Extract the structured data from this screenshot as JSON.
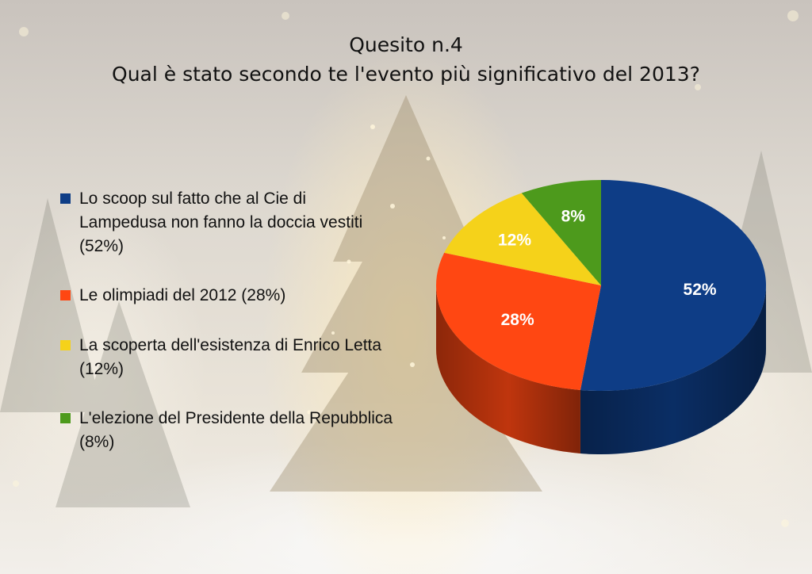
{
  "title": {
    "line1": "Quesito n.4",
    "line2": "Qual è stato secondo te l'evento più significativo del 2013?"
  },
  "chart_data": {
    "type": "pie",
    "title": "Qual è stato secondo te l'evento più significativo del 2013?",
    "legend_position": "left",
    "slices": [
      {
        "label": "Lo scoop sul fatto che al Cie di Lampedusa non fanno la doccia vestiti (52%)",
        "value": 52,
        "data_label": "52%",
        "color": "#0e3d86"
      },
      {
        "label": "Le olimpiadi del 2012 (28%)",
        "value": 28,
        "data_label": "28%",
        "color": "#ff4712"
      },
      {
        "label": "La scoperta dell'esistenza di Enrico Letta (12%)",
        "value": 12,
        "data_label": "12%",
        "color": "#f5d21a"
      },
      {
        "label": "L'elezione del Presidente della Repubblica (8%)",
        "value": 8,
        "data_label": "8%",
        "color": "#4d9a1c"
      }
    ]
  }
}
